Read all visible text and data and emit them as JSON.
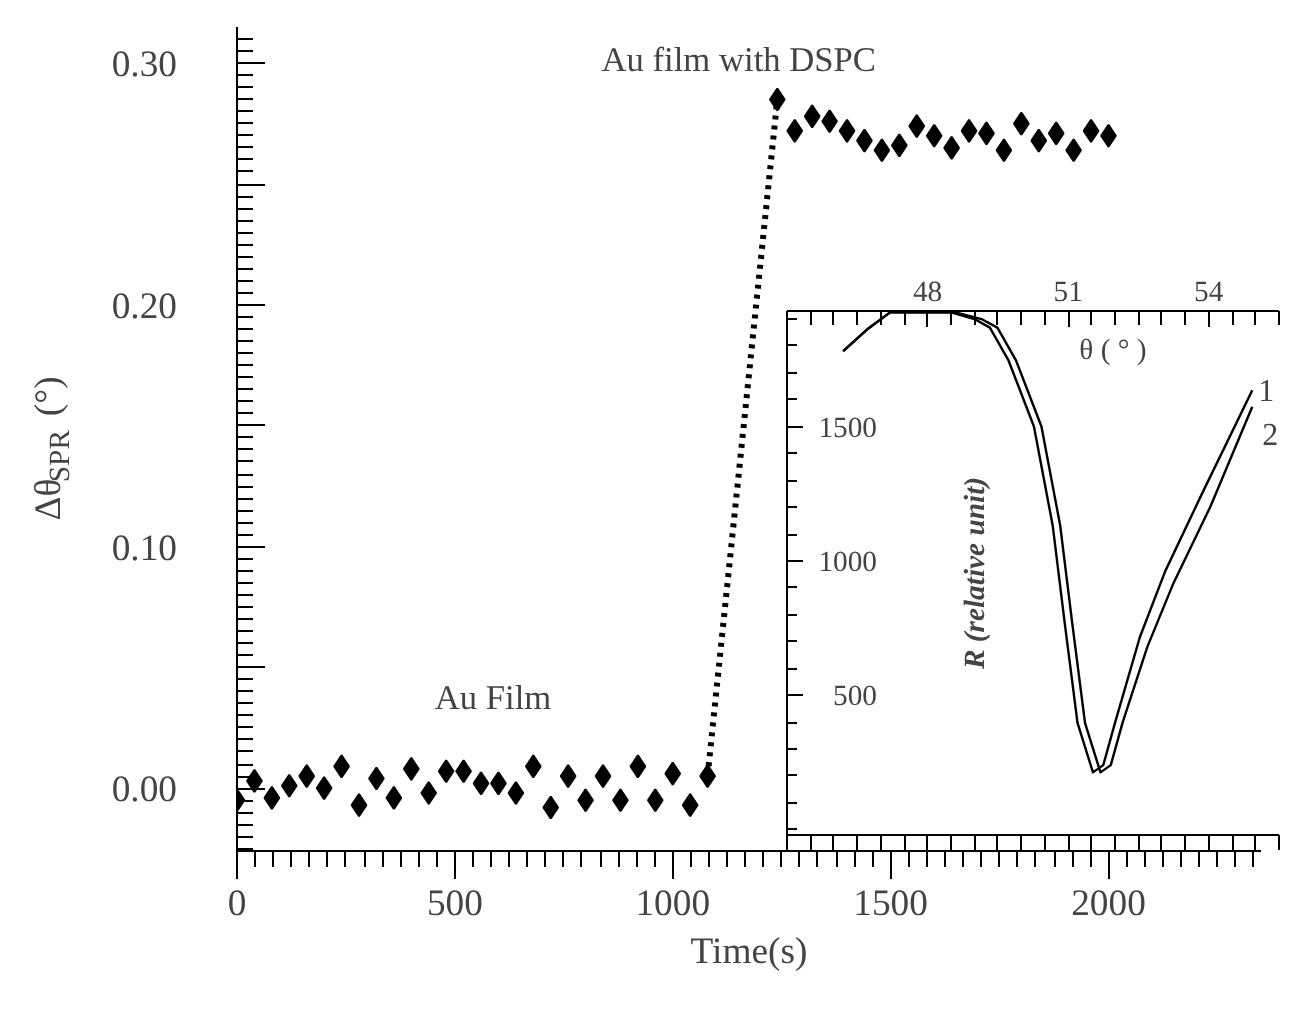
{
  "chart_data": [
    {
      "type": "scatter",
      "xlabel": "Time(s)",
      "ylabel": "Δθ$_{SPR}$ (°)",
      "xlim": [
        0,
        2350
      ],
      "xticks": [
        0,
        500,
        1000,
        1500,
        2000
      ],
      "ylim": [
        -0.026,
        0.315
      ],
      "yticks": [
        {
          "value": 0,
          "label": "0.00"
        },
        {
          "value": 0.05,
          "label": null
        },
        {
          "value": 0.1,
          "label": "0.10"
        },
        {
          "value": 0.15,
          "label": null
        },
        {
          "value": 0.2,
          "label": "0.20"
        },
        {
          "value": 0.25,
          "label": null
        },
        {
          "value": 0.3,
          "label": "0.30"
        }
      ],
      "annotations": [
        "Au Film",
        "Au film with DSPC"
      ],
      "series": [
        {
          "type": "scatter",
          "marker": "diamond",
          "color": "#000000",
          "x": [
            0,
            40,
            80,
            120,
            160,
            200,
            240,
            280,
            320,
            360,
            400,
            440,
            480,
            520,
            560,
            600,
            640,
            680,
            720,
            760,
            800,
            840,
            880,
            920,
            960,
            1000,
            1040,
            1080,
            1240,
            1280,
            1320,
            1360,
            1400,
            1440,
            1480,
            1520,
            1560,
            1600,
            1640,
            1680,
            1720,
            1760,
            1800,
            1840,
            1880,
            1920,
            1960,
            2000
          ],
          "values": [
            -0.005,
            0.003,
            -0.004,
            0.001,
            0.005,
            0.0,
            0.009,
            -0.007,
            0.004,
            -0.004,
            0.008,
            -0.002,
            0.007,
            0.007,
            0.002,
            0.002,
            -0.002,
            0.009,
            -0.008,
            0.005,
            -0.005,
            0.005,
            -0.005,
            0.009,
            -0.005,
            0.006,
            -0.007,
            0.005,
            0.285,
            0.272,
            0.278,
            0.276,
            0.272,
            0.268,
            0.264,
            0.266,
            0.274,
            0.27,
            0.265,
            0.272,
            0.271,
            0.264,
            0.275,
            0.268,
            0.271,
            0.264,
            0.272,
            0.27
          ]
        },
        {
          "type": "line",
          "line_style": "dotted",
          "color": "#000000",
          "x": [
            1080,
            1240
          ],
          "values": [
            0.005,
            0.285
          ]
        }
      ]
    },
    {
      "type": "line",
      "xlabel": "θ ( ° )",
      "ylabel": "R (relative unit)",
      "xlim": [
        45.0,
        55.5
      ],
      "xticks": [
        48,
        51,
        54
      ],
      "ylim": [
        -20,
        1930
      ],
      "yticks": [
        500,
        1000,
        1500
      ],
      "series": [
        {
          "name": "1",
          "color": "#000000",
          "x": [
            46.2,
            46.7,
            47.2,
            48.5,
            49.0,
            49.33,
            49.73,
            50.27,
            50.67,
            50.93,
            51.2,
            51.53,
            51.75,
            52.0,
            52.53,
            53.07,
            53.87,
            54.93
          ],
          "values": [
            1781,
            1860,
            1925,
            1925,
            1900,
            1868,
            1745,
            1500,
            1132,
            765,
            397,
            213,
            240,
            397,
            716,
            961,
            1255,
            1635
          ]
        },
        {
          "name": "2",
          "color": "#000000",
          "x": [
            46.2,
            46.7,
            47.2,
            48.6,
            49.15,
            49.49,
            49.89,
            50.43,
            50.83,
            51.09,
            51.36,
            51.69,
            51.91,
            52.16,
            52.69,
            53.23,
            54.03,
            54.93
          ],
          "values": [
            1781,
            1860,
            1925,
            1925,
            1900,
            1868,
            1745,
            1500,
            1132,
            765,
            397,
            213,
            240,
            397,
            680,
            910,
            1200,
            1574
          ]
        }
      ]
    }
  ]
}
